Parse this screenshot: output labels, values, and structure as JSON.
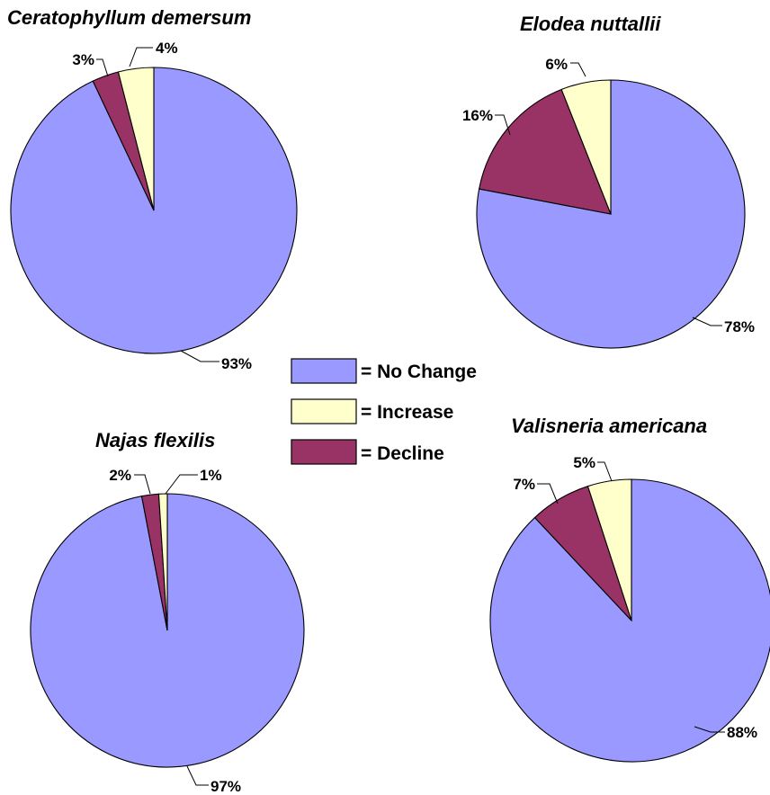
{
  "legend": {
    "items": [
      {
        "label": "= No Change",
        "color": "#9999ff"
      },
      {
        "label": "= Increase",
        "color": "#ffffcc"
      },
      {
        "label": "= Decline",
        "color": "#993366"
      }
    ]
  },
  "chart_data": [
    {
      "type": "pie",
      "title": "Ceratophyllum demersum",
      "categories": [
        "No Change",
        "Increase",
        "Decline"
      ],
      "values": [
        93,
        4,
        3
      ],
      "labels": [
        "93%",
        "4%",
        "3%"
      ],
      "colors": [
        "#9999ff",
        "#ffffcc",
        "#993366"
      ]
    },
    {
      "type": "pie",
      "title": "Elodea nuttallii",
      "categories": [
        "No Change",
        "Increase",
        "Decline"
      ],
      "values": [
        78,
        6,
        16
      ],
      "labels": [
        "78%",
        "6%",
        "16%"
      ],
      "colors": [
        "#9999ff",
        "#ffffcc",
        "#993366"
      ]
    },
    {
      "type": "pie",
      "title": "Najas flexilis",
      "categories": [
        "No Change",
        "Increase",
        "Decline"
      ],
      "values": [
        97,
        1,
        2
      ],
      "labels": [
        "97%",
        "1%",
        "2%"
      ],
      "colors": [
        "#9999ff",
        "#ffffcc",
        "#993366"
      ]
    },
    {
      "type": "pie",
      "title": "Valisneria americana",
      "categories": [
        "No Change",
        "Increase",
        "Decline"
      ],
      "values": [
        88,
        5,
        7
      ],
      "labels": [
        "88%",
        "5%",
        "7%"
      ],
      "colors": [
        "#9999ff",
        "#ffffcc",
        "#993366"
      ]
    }
  ]
}
